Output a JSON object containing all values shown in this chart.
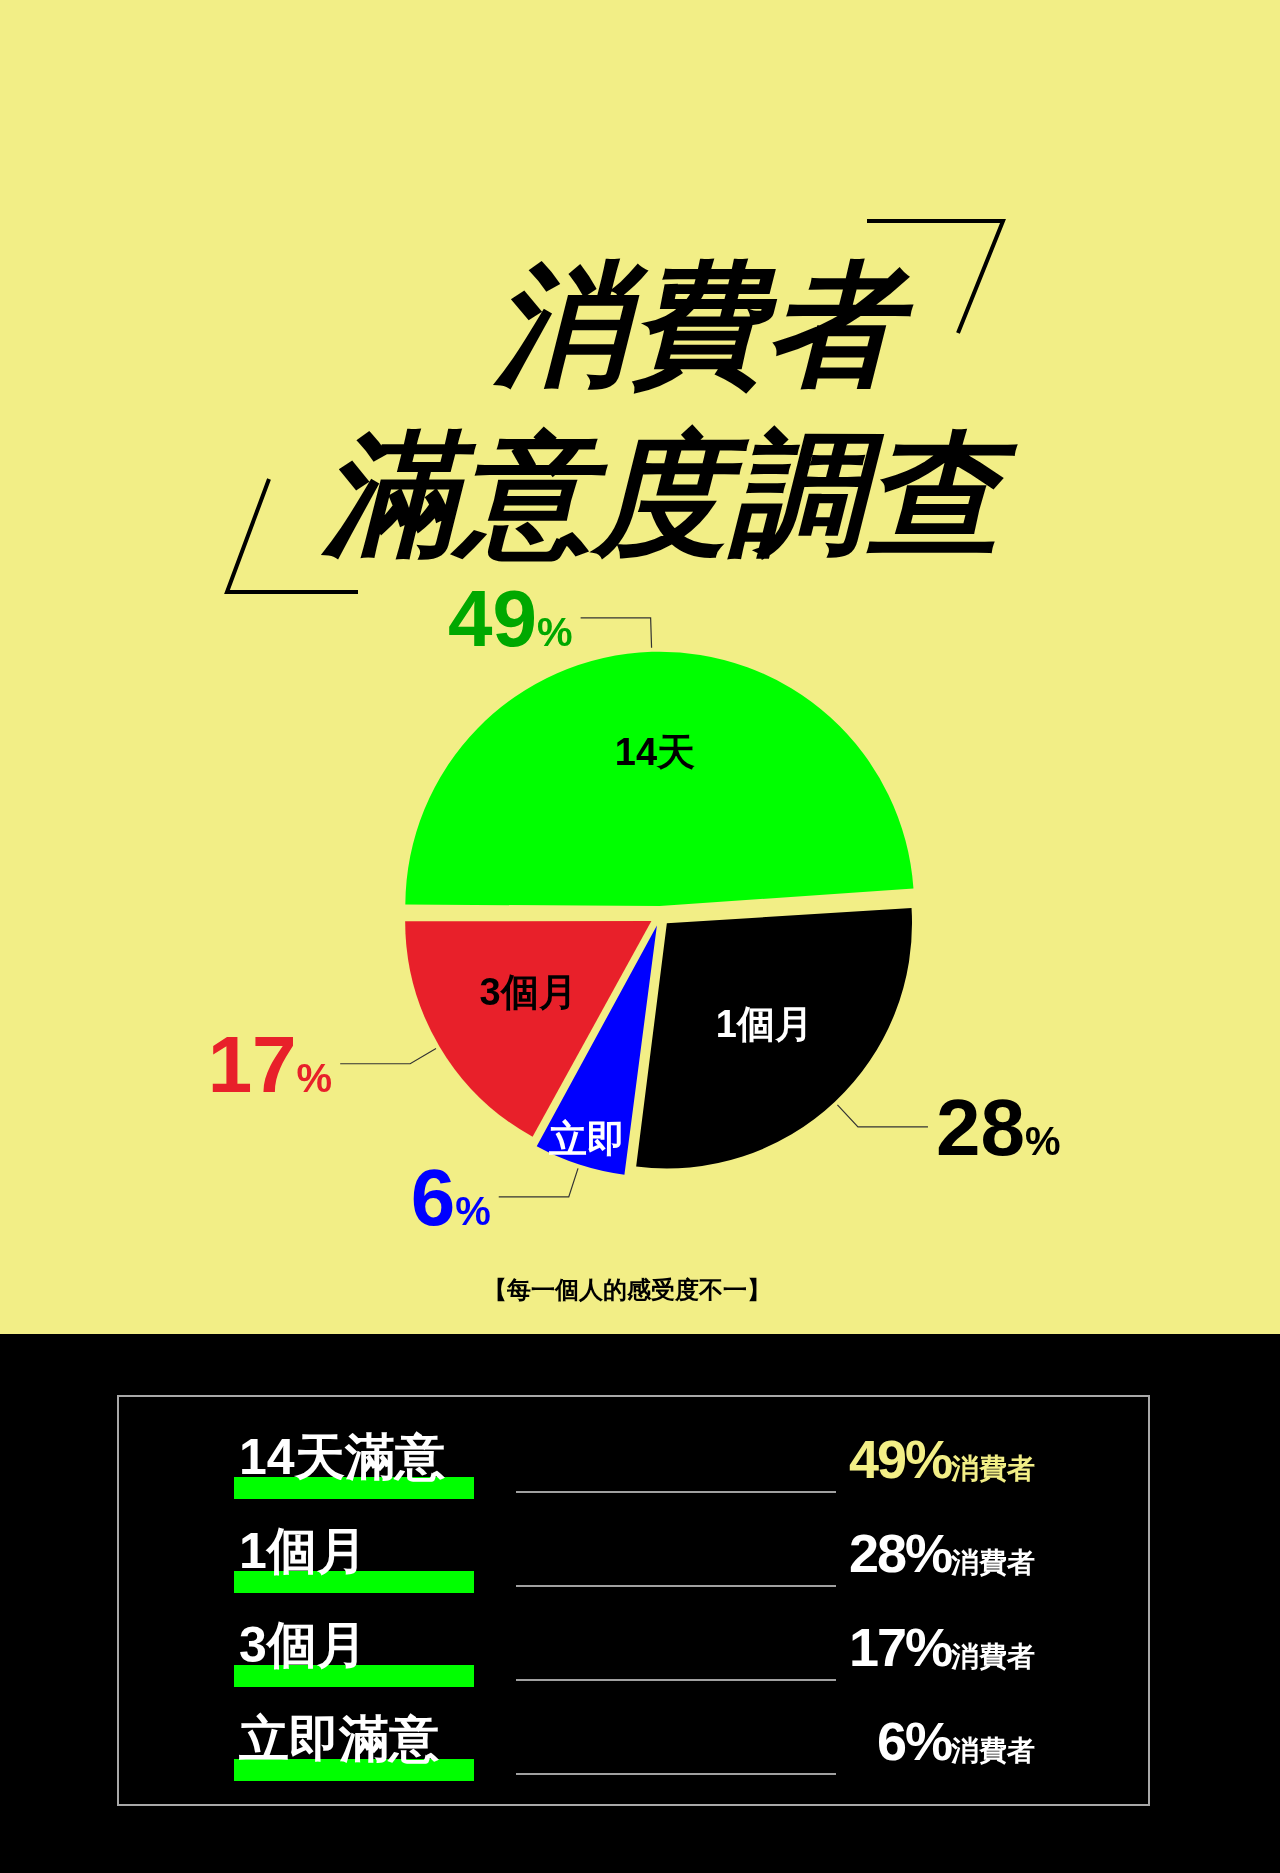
{
  "chart_data": [
    {
      "type": "pie",
      "title": "消費者滿意度調查",
      "categories": [
        "14天",
        "1個月",
        "立即",
        "3個月"
      ],
      "values": [
        49,
        28,
        6,
        17
      ],
      "colors": [
        "#00ff00",
        "#000000",
        "#0000ff",
        "#e8202a"
      ],
      "value_labels": [
        "49%",
        "28%",
        "6%",
        "17%"
      ],
      "annotations": [
        "【每一個人的感受度不一】"
      ]
    },
    {
      "type": "other",
      "categories": [
        "14天滿意",
        "1個月",
        "3個月",
        "立即滿意"
      ],
      "value_labels": [
        "49%消費者",
        "28%消費者",
        "17%消費者",
        "6%消費者"
      ]
    }
  ]
}
